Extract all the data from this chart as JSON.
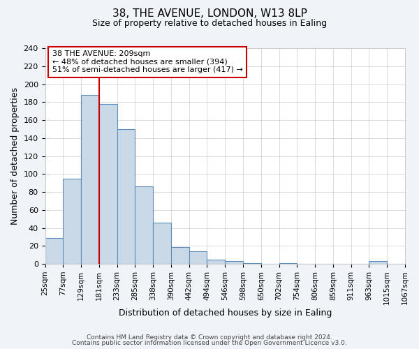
{
  "title": "38, THE AVENUE, LONDON, W13 8LP",
  "subtitle": "Size of property relative to detached houses in Ealing",
  "xlabel": "Distribution of detached houses by size in Ealing",
  "ylabel": "Number of detached properties",
  "bar_values": [
    29,
    95,
    188,
    178,
    150,
    86,
    46,
    19,
    14,
    5,
    3,
    1,
    0,
    1,
    0,
    0,
    0,
    0,
    3,
    0
  ],
  "bin_labels": [
    "25sqm",
    "77sqm",
    "129sqm",
    "181sqm",
    "233sqm",
    "285sqm",
    "338sqm",
    "390sqm",
    "442sqm",
    "494sqm",
    "546sqm",
    "598sqm",
    "650sqm",
    "702sqm",
    "754sqm",
    "806sqm",
    "859sqm",
    "911sqm",
    "963sqm",
    "1015sqm",
    "1067sqm"
  ],
  "bar_color": "#c9d9e8",
  "bar_edge_color": "#5b8db8",
  "red_line_x": 3,
  "annotation_text": "38 THE AVENUE: 209sqm\n← 48% of detached houses are smaller (394)\n51% of semi-detached houses are larger (417) →",
  "annotation_box_color": "#ffffff",
  "annotation_box_edge": "#cc0000",
  "red_line_color": "#cc0000",
  "ylim": [
    0,
    240
  ],
  "yticks": [
    0,
    20,
    40,
    60,
    80,
    100,
    120,
    140,
    160,
    180,
    200,
    220,
    240
  ],
  "footer1": "Contains HM Land Registry data © Crown copyright and database right 2024.",
  "footer2": "Contains public sector information licensed under the Open Government Licence v3.0.",
  "bg_color": "#f0f4f8",
  "plot_bg_color": "#ffffff",
  "grid_color": "#cccccc"
}
